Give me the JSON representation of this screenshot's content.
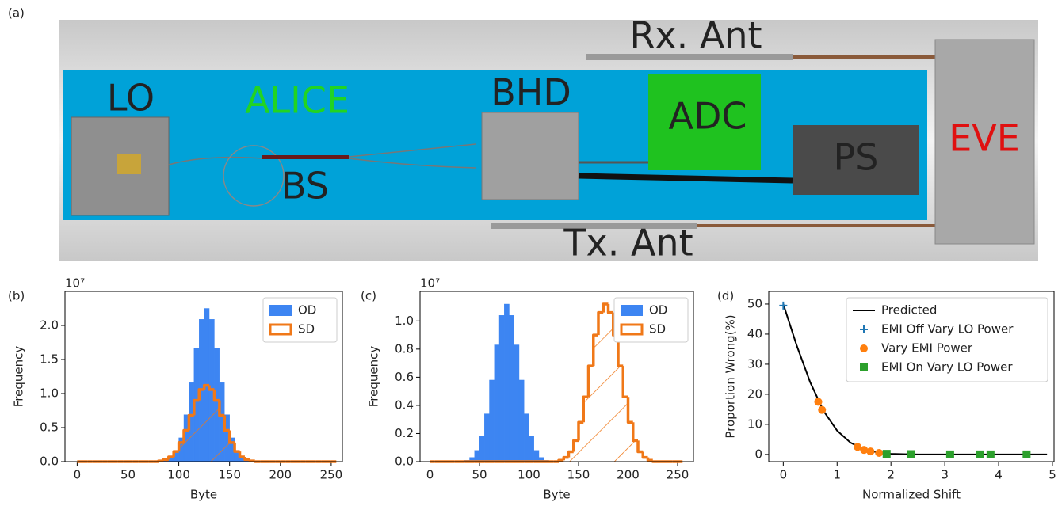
{
  "panel_a": {
    "panel_label": "(a)",
    "labels": {
      "lo": "LO",
      "alice": "ALICE",
      "bs": "BS",
      "bhd": "BHD",
      "adc": "ADC",
      "ps": "PS",
      "eve": "EVE",
      "rx": "Rx. Ant",
      "tx": "Tx. Ant"
    }
  },
  "chart_data": [
    {
      "type": "histogram",
      "panel_label": "(b)",
      "xlabel": "Byte",
      "ylabel": "Frequency",
      "y_scale_label": "10⁷",
      "bins": [
        0,
        5,
        10,
        15,
        20,
        25,
        30,
        35,
        40,
        45,
        50,
        55,
        60,
        65,
        70,
        75,
        80,
        85,
        90,
        95,
        100,
        105,
        110,
        115,
        120,
        125,
        130,
        135,
        140,
        145,
        150,
        155,
        160,
        165,
        170,
        175,
        180,
        185,
        190,
        195,
        200,
        205,
        210,
        215,
        220,
        225,
        230,
        235,
        240,
        245,
        250,
        255
      ],
      "series": [
        {
          "name": "OD",
          "color": "#3d85f2",
          "fill": true,
          "values": [
            0,
            0,
            0,
            0,
            0,
            0,
            0,
            0,
            0,
            0,
            0,
            0,
            0,
            0,
            0,
            0,
            0.01,
            0.02,
            0.06,
            0.16,
            0.35,
            0.69,
            1.16,
            1.67,
            2.09,
            2.25,
            2.09,
            1.67,
            1.16,
            0.69,
            0.35,
            0.16,
            0.06,
            0.02,
            0.01,
            0,
            0,
            0,
            0,
            0,
            0,
            0,
            0,
            0,
            0,
            0,
            0,
            0,
            0,
            0,
            0
          ]
        },
        {
          "name": "SD",
          "color": "#f07818",
          "fill": false,
          "hatch": "/",
          "values": [
            0,
            0,
            0,
            0,
            0,
            0,
            0,
            0,
            0,
            0,
            0,
            0,
            0,
            0,
            0,
            0,
            0.01,
            0.03,
            0.07,
            0.15,
            0.28,
            0.46,
            0.68,
            0.9,
            1.06,
            1.12,
            1.06,
            0.9,
            0.68,
            0.46,
            0.28,
            0.15,
            0.07,
            0.03,
            0.01,
            0,
            0,
            0,
            0,
            0,
            0,
            0,
            0,
            0,
            0,
            0,
            0,
            0,
            0,
            0,
            0
          ]
        }
      ],
      "xlim": [
        -12,
        261
      ],
      "xticks": [
        0,
        50,
        100,
        150,
        200,
        250
      ],
      "ylim": [
        0,
        2.5
      ],
      "yticks": [
        {
          "value": 0,
          "label": "0.0"
        },
        {
          "value": 0.5,
          "label": "0.5"
        },
        {
          "value": 1,
          "label": "1.0"
        },
        {
          "value": 1.5,
          "label": "1.5"
        },
        {
          "value": 2,
          "label": "2.0"
        }
      ],
      "legend": "upper right"
    },
    {
      "type": "histogram",
      "panel_label": "(c)",
      "xlabel": "Byte",
      "ylabel": "Frequency",
      "y_scale_label": "10⁷",
      "bins": [
        0,
        5,
        10,
        15,
        20,
        25,
        30,
        35,
        40,
        45,
        50,
        55,
        60,
        65,
        70,
        75,
        80,
        85,
        90,
        95,
        100,
        105,
        110,
        115,
        120,
        125,
        130,
        135,
        140,
        145,
        150,
        155,
        160,
        165,
        170,
        175,
        180,
        185,
        190,
        195,
        200,
        205,
        210,
        215,
        220,
        225,
        230,
        235,
        240,
        245,
        250,
        255
      ],
      "series": [
        {
          "name": "OD",
          "color": "#3d85f2",
          "fill": true,
          "values": [
            0,
            0,
            0,
            0,
            0,
            0,
            0,
            0.01,
            0.03,
            0.08,
            0.18,
            0.34,
            0.58,
            0.83,
            1.04,
            1.12,
            1.04,
            0.83,
            0.58,
            0.34,
            0.18,
            0.08,
            0.03,
            0.01,
            0,
            0,
            0,
            0,
            0,
            0,
            0,
            0,
            0,
            0,
            0,
            0,
            0,
            0,
            0,
            0,
            0,
            0,
            0,
            0,
            0,
            0,
            0,
            0,
            0,
            0,
            0
          ]
        },
        {
          "name": "SD",
          "color": "#f07818",
          "fill": false,
          "hatch": "/",
          "values": [
            0,
            0,
            0,
            0,
            0,
            0,
            0,
            0,
            0,
            0,
            0,
            0,
            0,
            0,
            0,
            0,
            0,
            0,
            0,
            0,
            0,
            0,
            0,
            0,
            0,
            0,
            0.01,
            0.03,
            0.07,
            0.15,
            0.28,
            0.46,
            0.68,
            0.9,
            1.06,
            1.12,
            1.06,
            0.9,
            0.68,
            0.46,
            0.28,
            0.15,
            0.07,
            0.03,
            0.01,
            0,
            0,
            0,
            0,
            0,
            0
          ]
        }
      ],
      "xlim": [
        -10,
        266
      ],
      "xticks": [
        0,
        50,
        100,
        150,
        200,
        250
      ],
      "ylim": [
        0,
        1.21
      ],
      "yticks": [
        {
          "value": 0,
          "label": "0.0"
        },
        {
          "value": 0.2,
          "label": "0.2"
        },
        {
          "value": 0.4,
          "label": "0.4"
        },
        {
          "value": 0.6,
          "label": "0.6"
        },
        {
          "value": 0.8,
          "label": "0.8"
        },
        {
          "value": 1,
          "label": "1.0"
        }
      ],
      "legend": "upper right"
    },
    {
      "type": "scatter",
      "panel_label": "(d)",
      "xlabel": "Normalized Shift",
      "ylabel": "Proportion Wrong(%)",
      "series": [
        {
          "name": "Predicted",
          "color": "#000000",
          "marker": "line",
          "x": [
            0,
            0.25,
            0.5,
            0.75,
            1,
            1.25,
            1.5,
            1.75,
            2,
            2.5,
            3,
            3.5,
            4,
            4.5,
            4.9
          ],
          "values": [
            50,
            36.2,
            24,
            14.4,
            7.9,
            3.9,
            1.7,
            0.7,
            0.2,
            0,
            0,
            0,
            0,
            0,
            0
          ]
        },
        {
          "name": "EMI Off Vary LO Power",
          "color": "#1f77b4",
          "marker": "+",
          "x": [
            0
          ],
          "values": [
            49.5
          ]
        },
        {
          "name": "Vary EMI Power",
          "color": "#ff7f0e",
          "marker": "o",
          "x": [
            0.65,
            0.72,
            1.38,
            1.5,
            1.62,
            1.78
          ],
          "values": [
            17.5,
            14.8,
            2.5,
            1.5,
            1.0,
            0.5
          ]
        },
        {
          "name": "EMI On Vary LO Power",
          "color": "#2ca02c",
          "marker": "s",
          "x": [
            1.92,
            2.38,
            3.1,
            3.65,
            3.85,
            4.52
          ],
          "values": [
            0.2,
            0.1,
            0,
            0,
            0,
            0
          ]
        }
      ],
      "xlim": [
        -0.27,
        5.03
      ],
      "xticks": [
        0,
        1,
        2,
        3,
        4,
        5
      ],
      "ylim": [
        -2.4,
        54.2
      ],
      "yticks": [
        0,
        10,
        20,
        30,
        40,
        50
      ],
      "legend": "upper right"
    }
  ]
}
